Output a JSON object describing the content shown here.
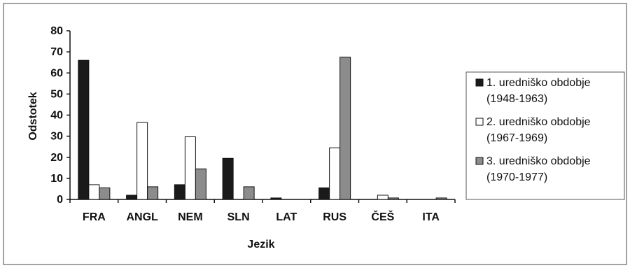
{
  "chart_data": {
    "type": "bar",
    "title": "",
    "xlabel": "Jezik",
    "ylabel": "Odstotek",
    "ylim": [
      0,
      80
    ],
    "yticks": [
      0,
      10,
      20,
      30,
      40,
      50,
      60,
      70,
      80
    ],
    "grid": false,
    "legend_position": "right",
    "categories": [
      "FRA",
      "ANGL",
      "NEM",
      "SLN",
      "LAT",
      "RUS",
      "ČEŠ",
      "ITA"
    ],
    "series": [
      {
        "name": [
          "1. uredniško obdobje",
          "(1948-1963)"
        ],
        "color": "#1a1a1a",
        "values": [
          66,
          2,
          7,
          19.5,
          0.7,
          5.5,
          0,
          0
        ]
      },
      {
        "name": [
          "2. uredniško obdobje",
          "(1967-1969)"
        ],
        "color": "#ffffff",
        "values": [
          7,
          36.5,
          29.7,
          0,
          0,
          24.5,
          2,
          0
        ]
      },
      {
        "name": [
          "3. uredniško obdobje",
          "(1970-1977)"
        ],
        "color": "#8c8c8c",
        "values": [
          5.5,
          6,
          14.5,
          6,
          0,
          67.5,
          0.7,
          0.7
        ]
      }
    ]
  }
}
